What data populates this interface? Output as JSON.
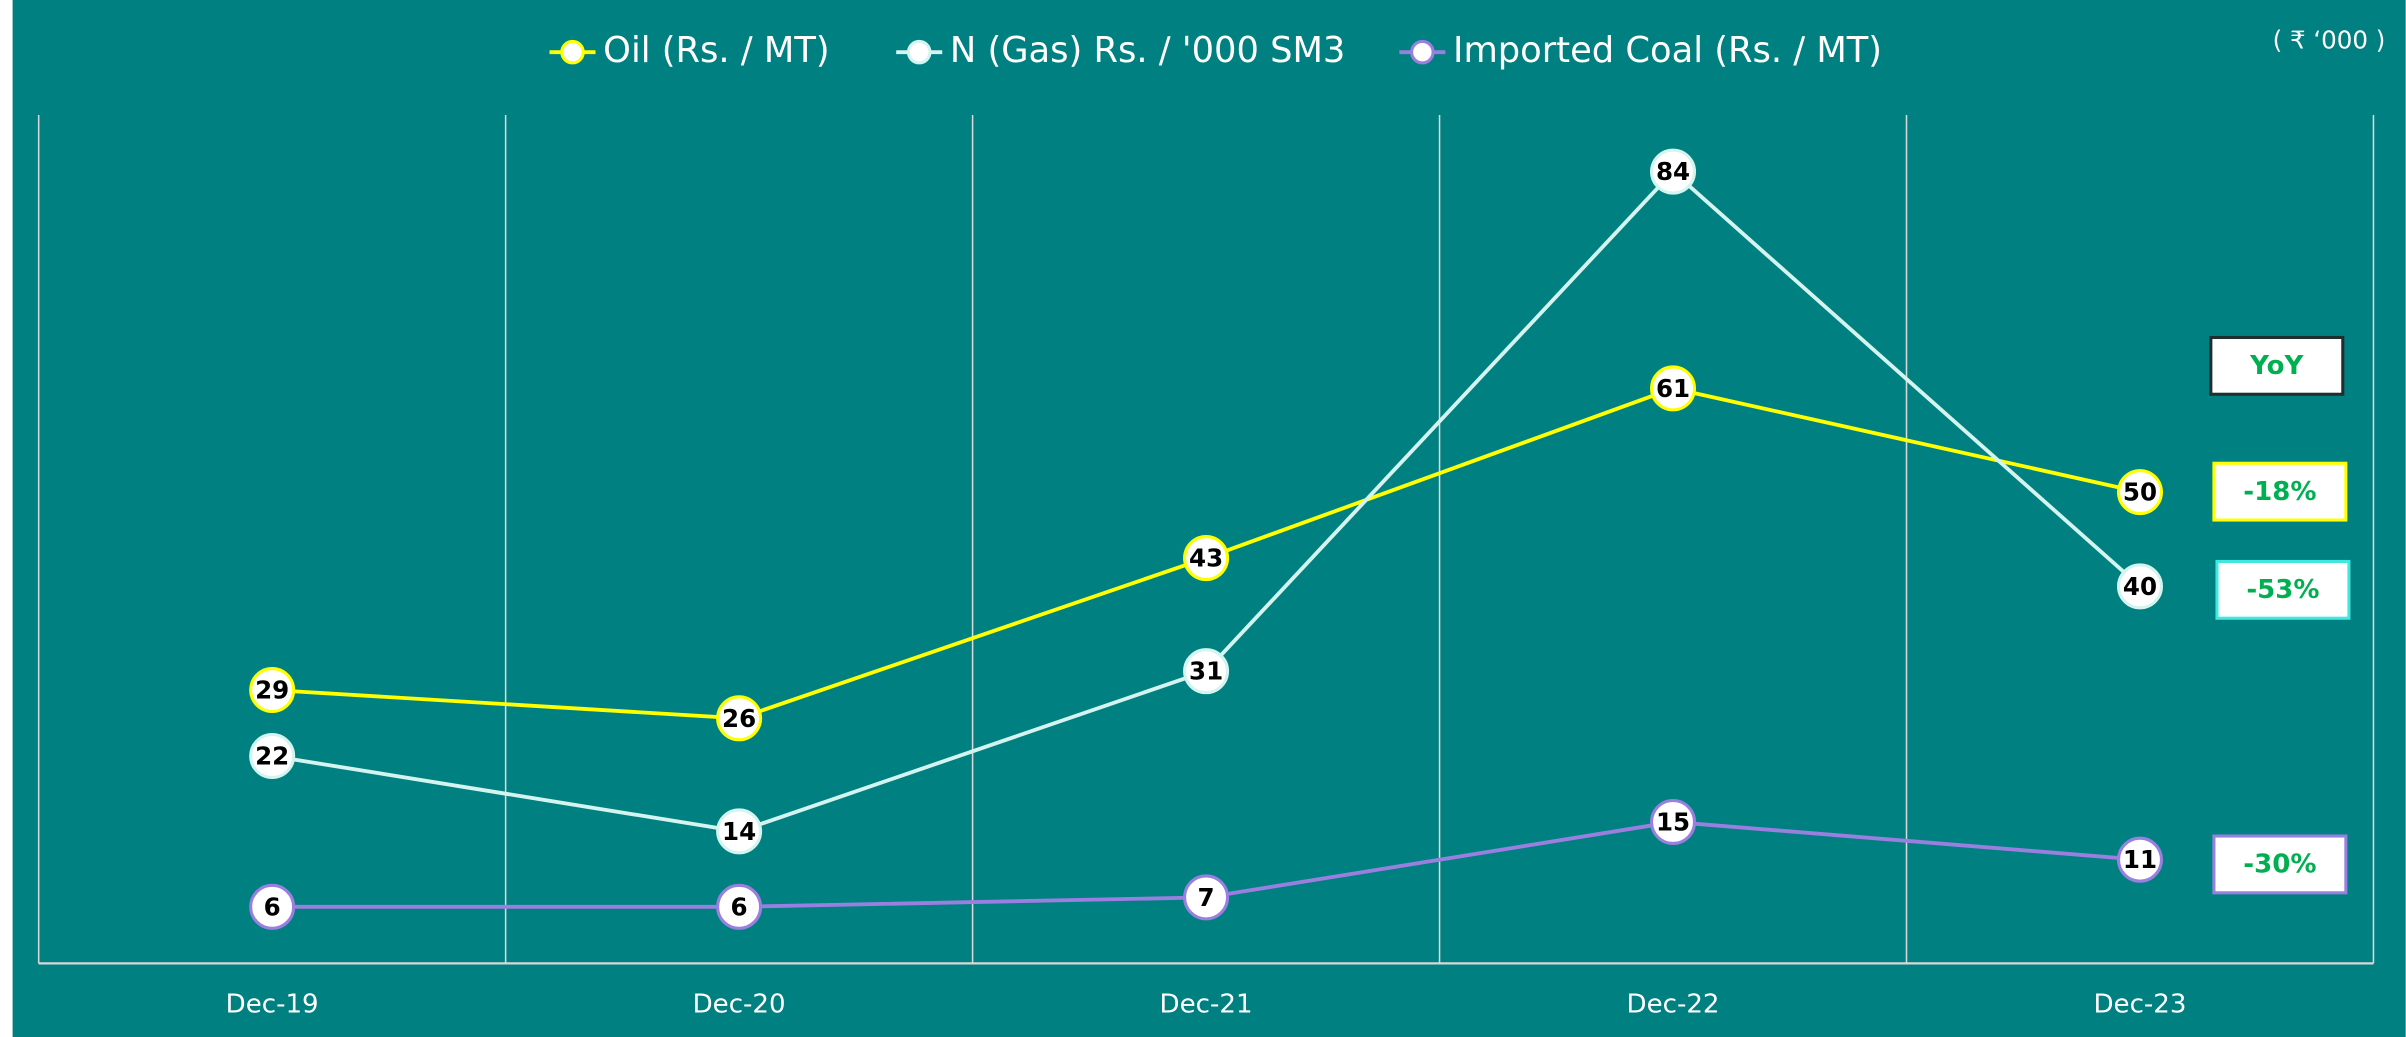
{
  "chart_data": {
    "type": "line",
    "unit_label": "( ₹ ‘000 )",
    "categories": [
      "Dec-19",
      "Dec-20",
      "Dec-21",
      "Dec-22",
      "Dec-23"
    ],
    "series": [
      {
        "name": "Oil (Rs. / MT)",
        "color": "#ffff00",
        "values": [
          29,
          26,
          43,
          61,
          50
        ]
      },
      {
        "name": "N (Gas) Rs. / '000 SM3",
        "color": "#d4f4ef",
        "values": [
          22,
          14,
          31,
          84,
          40
        ]
      },
      {
        "name": "Imported Coal (Rs. / MT)",
        "color": "#9a7fe0",
        "values": [
          6,
          6,
          7,
          15,
          11
        ]
      }
    ],
    "ylim": [
      0,
      90
    ],
    "grid": true,
    "legend": "top",
    "annotations": [
      {
        "text": "YoY",
        "color": "#1f2f2f"
      },
      {
        "text": "-18%",
        "color": "#ffff00"
      },
      {
        "text": "-53%",
        "color": "#40e8e0"
      },
      {
        "text": "-30%",
        "color": "#9a7fe0"
      }
    ]
  }
}
